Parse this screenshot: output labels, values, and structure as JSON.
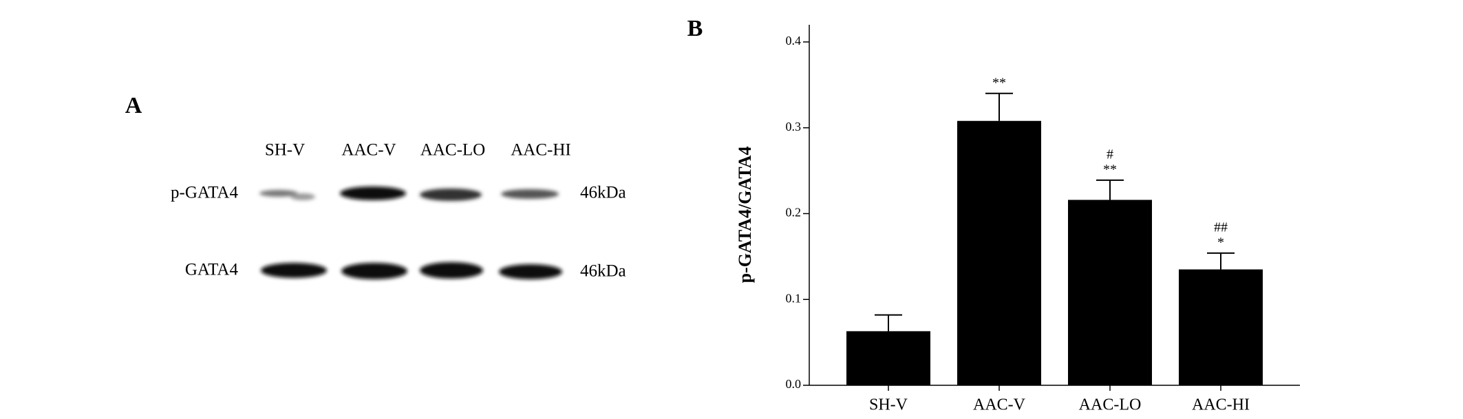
{
  "panel_a": {
    "label": "A",
    "lanes": [
      "SH-V",
      "AAC-V",
      "AAC-LO",
      "AAC-HI"
    ],
    "rows": [
      {
        "name": "p-GATA4",
        "size": "46kDa"
      },
      {
        "name": "GATA4",
        "size": "46kDa"
      }
    ]
  },
  "chart_data": {
    "type": "bar",
    "panel_label": "B",
    "y_label": "p-GATA4/GATA4",
    "categories": [
      "SH-V",
      "AAC-V",
      "AAC-LO",
      "AAC-HI"
    ],
    "values": [
      0.063,
      0.308,
      0.216,
      0.135
    ],
    "errors": [
      0.019,
      0.032,
      0.023,
      0.019
    ],
    "annotations": [
      null,
      [
        "**"
      ],
      [
        "#",
        "**"
      ],
      [
        "##",
        "*"
      ]
    ],
    "color": "#000000",
    "ylim": [
      0,
      0.42
    ],
    "yticks": [
      {
        "value": 0,
        "label": "0.0"
      },
      0.1,
      0.2,
      0.3,
      0.4
    ]
  }
}
